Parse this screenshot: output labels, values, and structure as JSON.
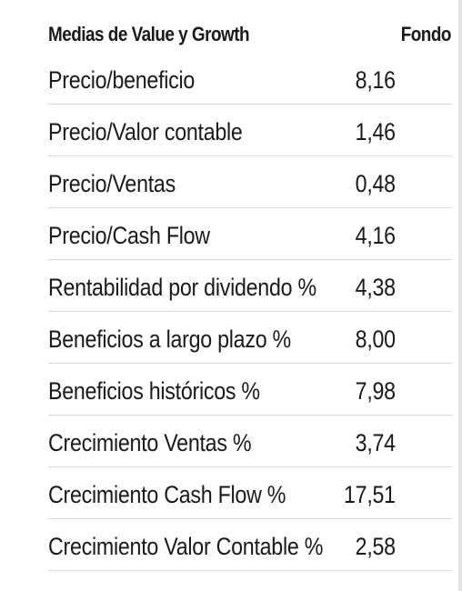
{
  "table": {
    "header": {
      "label": "Medias de Value y Growth",
      "value": "Fondo"
    },
    "rows": [
      {
        "label": "Precio/beneficio",
        "value": "8,16"
      },
      {
        "label": "Precio/Valor contable",
        "value": "1,46"
      },
      {
        "label": "Precio/Ventas",
        "value": "0,48"
      },
      {
        "label": "Precio/Cash Flow",
        "value": "4,16"
      },
      {
        "label": "Rentabilidad por dividendo %",
        "value": "4,38"
      },
      {
        "label": "Beneficios a largo plazo %",
        "value": "8,00"
      },
      {
        "label": "Beneficios históricos %",
        "value": "7,98"
      },
      {
        "label": "Crecimiento Ventas %",
        "value": "3,74"
      },
      {
        "label": "Crecimiento Cash Flow %",
        "value": "17,51"
      },
      {
        "label": "Crecimiento Valor Contable %",
        "value": "2,58"
      }
    ]
  }
}
